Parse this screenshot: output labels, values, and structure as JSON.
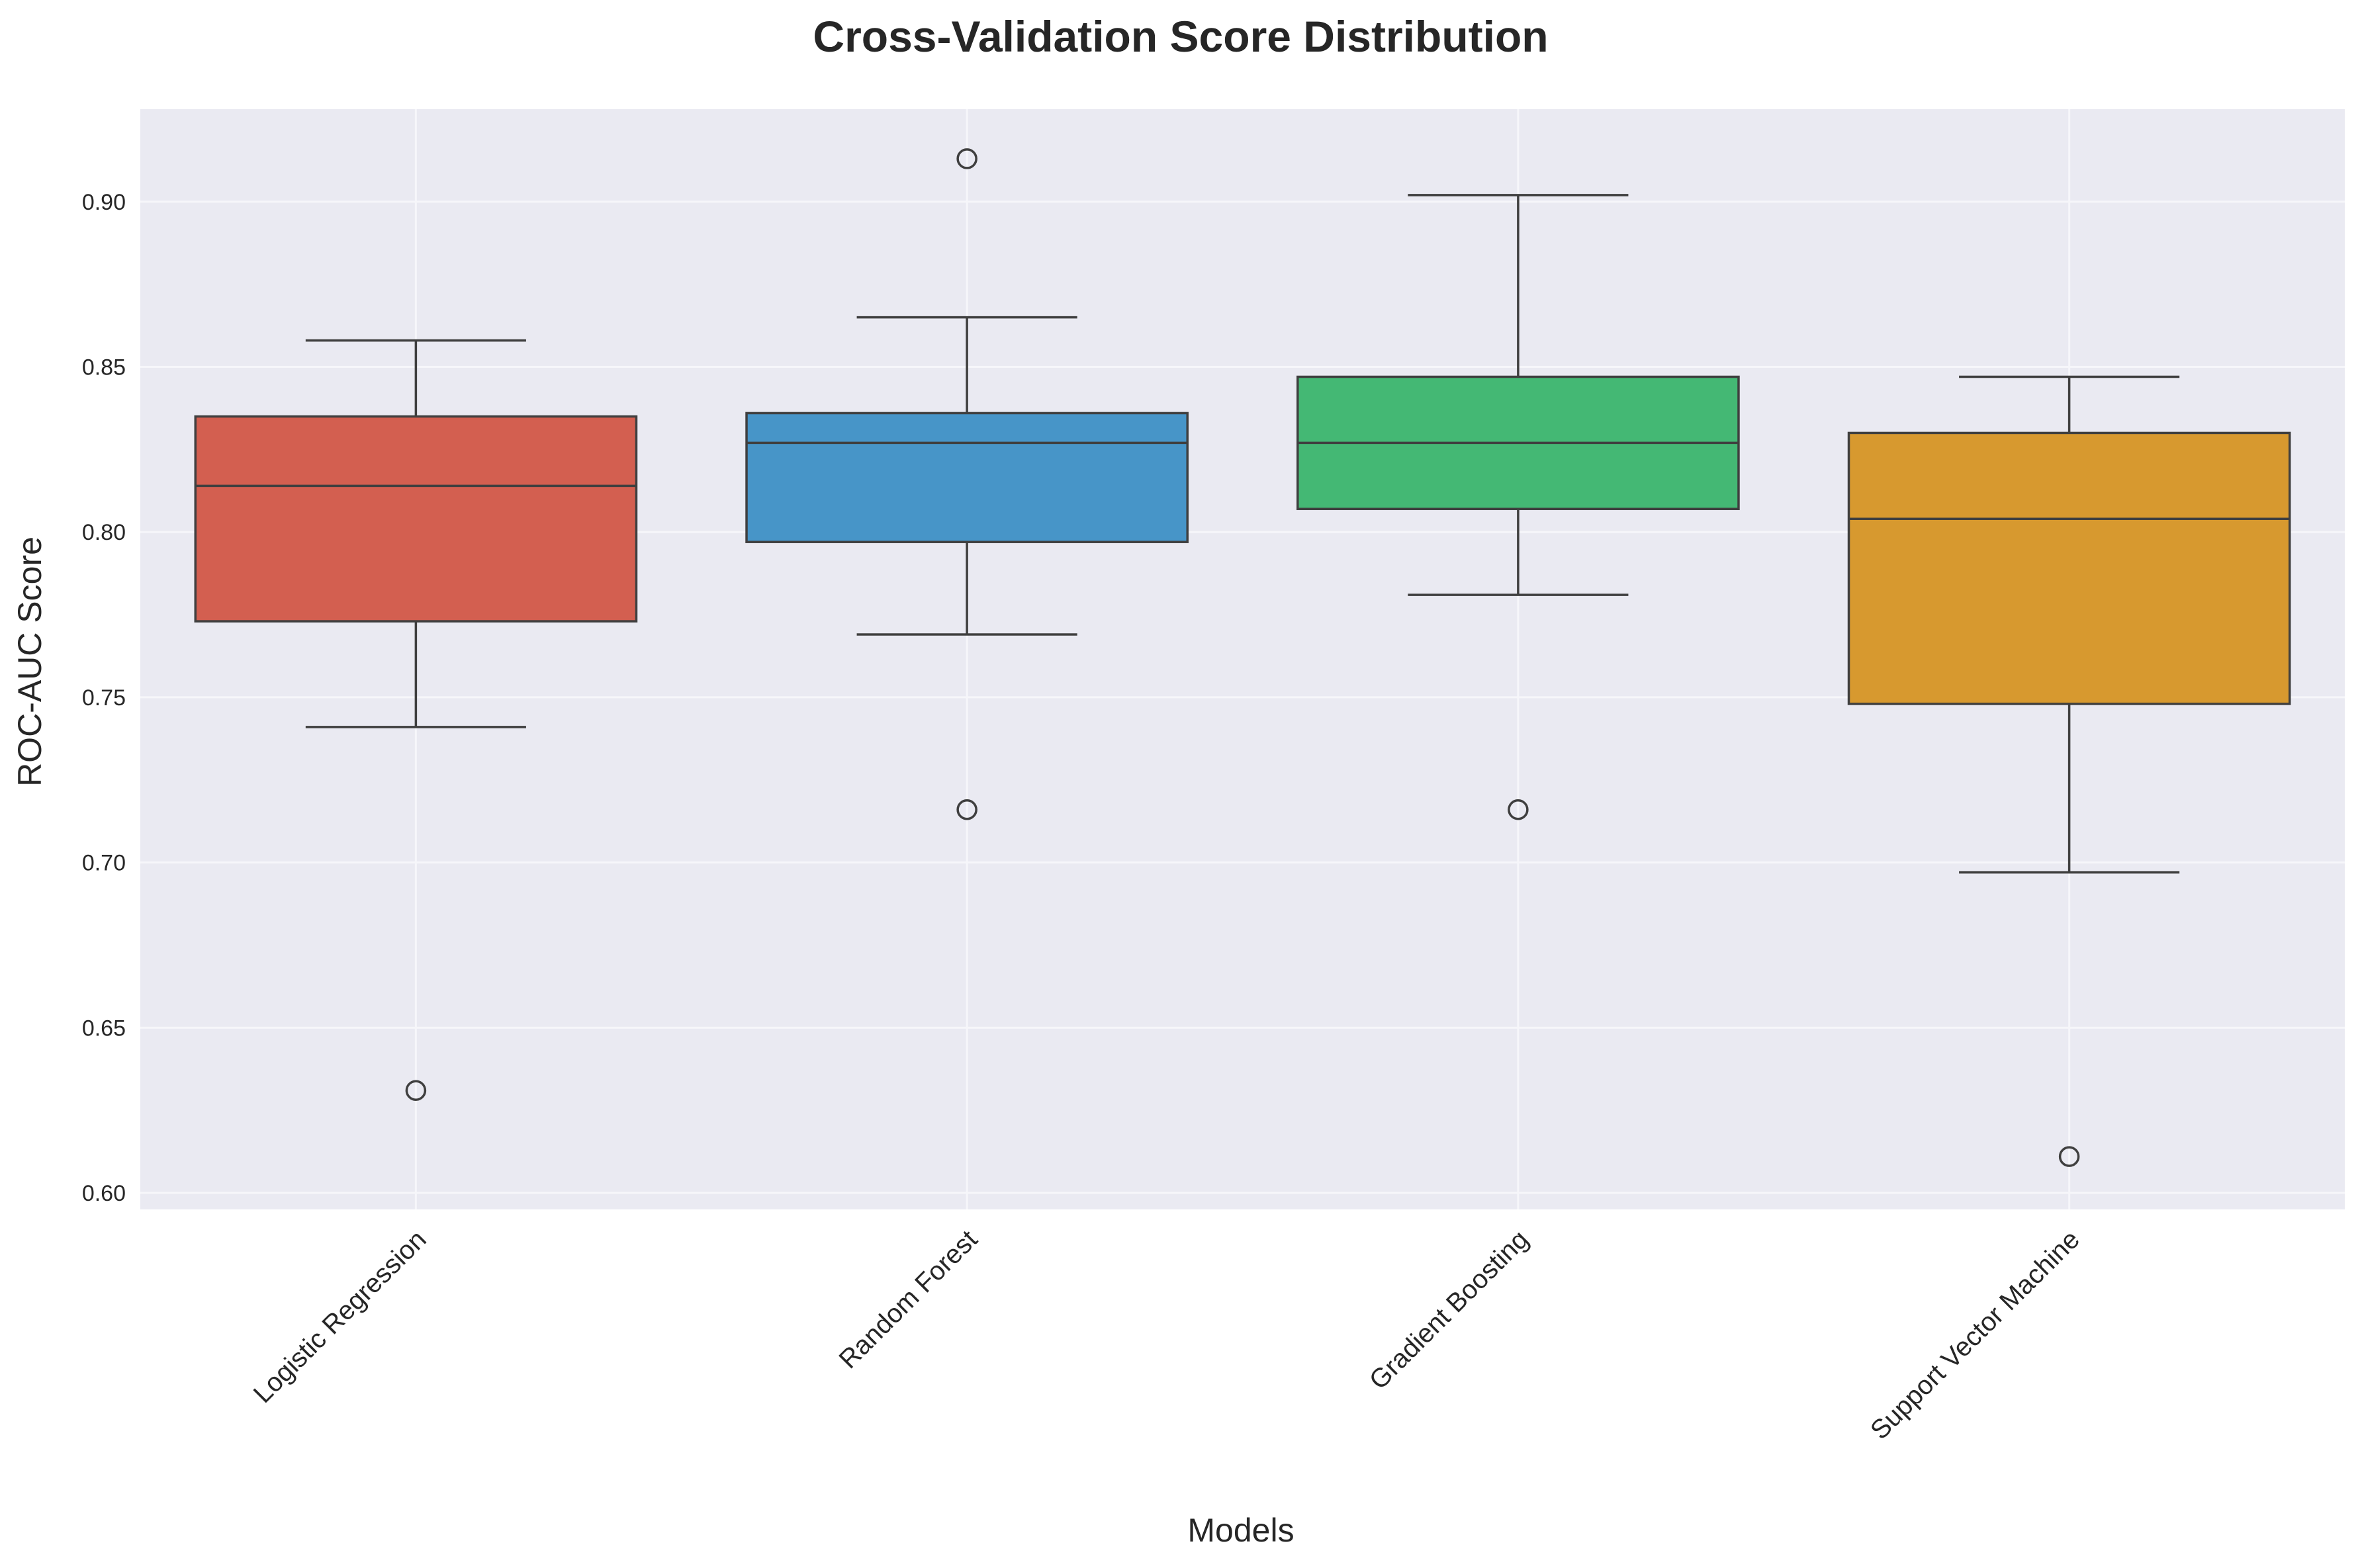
{
  "chart_data": {
    "type": "box",
    "title": "Cross-Validation Score Distribution",
    "xlabel": "Models",
    "ylabel": "ROC-AUC Score",
    "ylim": [
      0.595,
      0.928
    ],
    "yticks": [
      0.6,
      0.65,
      0.7,
      0.75,
      0.8,
      0.85,
      0.9
    ],
    "ytick_labels": [
      "0.60",
      "0.65",
      "0.70",
      "0.75",
      "0.80",
      "0.85",
      "0.90"
    ],
    "grid": true,
    "categories": [
      "Logistic Regression",
      "Random Forest",
      "Gradient Boosting",
      "Support Vector Machine"
    ],
    "boxes": [
      {
        "name": "Logistic Regression",
        "color": "#d35f50",
        "whisker_low": 0.741,
        "q1": 0.773,
        "median": 0.814,
        "q3": 0.835,
        "whisker_high": 0.858,
        "outliers": [
          0.631
        ]
      },
      {
        "name": "Random Forest",
        "color": "#4795c8",
        "whisker_low": 0.769,
        "q1": 0.797,
        "median": 0.827,
        "q3": 0.836,
        "whisker_high": 0.865,
        "outliers": [
          0.913,
          0.716
        ]
      },
      {
        "name": "Gradient Boosting",
        "color": "#44b874",
        "whisker_low": 0.781,
        "q1": 0.807,
        "median": 0.827,
        "q3": 0.847,
        "whisker_high": 0.902,
        "outliers": [
          0.716
        ]
      },
      {
        "name": "Support Vector Machine",
        "color": "#d7992f",
        "whisker_low": 0.697,
        "q1": 0.748,
        "median": 0.804,
        "q3": 0.83,
        "whisker_high": 0.847,
        "outliers": [
          0.611
        ]
      }
    ]
  }
}
